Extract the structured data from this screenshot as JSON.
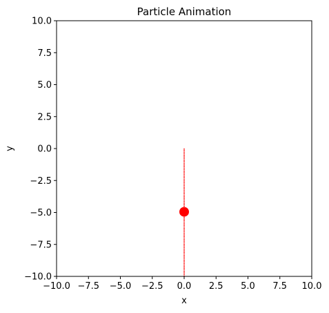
{
  "chart_data": {
    "type": "scatter",
    "title": "Particle Animation",
    "xlabel": "x",
    "ylabel": "y",
    "xlim": [
      -10,
      10
    ],
    "ylim": [
      -10,
      10
    ],
    "xticks": [
      -10.0,
      -7.5,
      -5.0,
      -2.5,
      0.0,
      2.5,
      5.0,
      7.5,
      10.0
    ],
    "yticks": [
      -10.0,
      -7.5,
      -5.0,
      -2.5,
      0.0,
      2.5,
      5.0,
      7.5,
      10.0
    ],
    "xtick_labels": [
      "−10.0",
      "−7.5",
      "−5.0",
      "−2.5",
      "0.0",
      "2.5",
      "5.0",
      "7.5",
      "10.0"
    ],
    "ytick_labels": [
      "−10.0",
      "−7.5",
      "−5.0",
      "−2.5",
      "0.0",
      "2.5",
      "5.0",
      "7.5",
      "10.0"
    ],
    "grid": false,
    "trail": {
      "x": [
        0,
        0
      ],
      "y": [
        0,
        -10
      ],
      "color": "#ff0000",
      "style": "dotted-line"
    },
    "particle": {
      "x": 0,
      "y": -4.95,
      "color": "#ff0000"
    }
  }
}
